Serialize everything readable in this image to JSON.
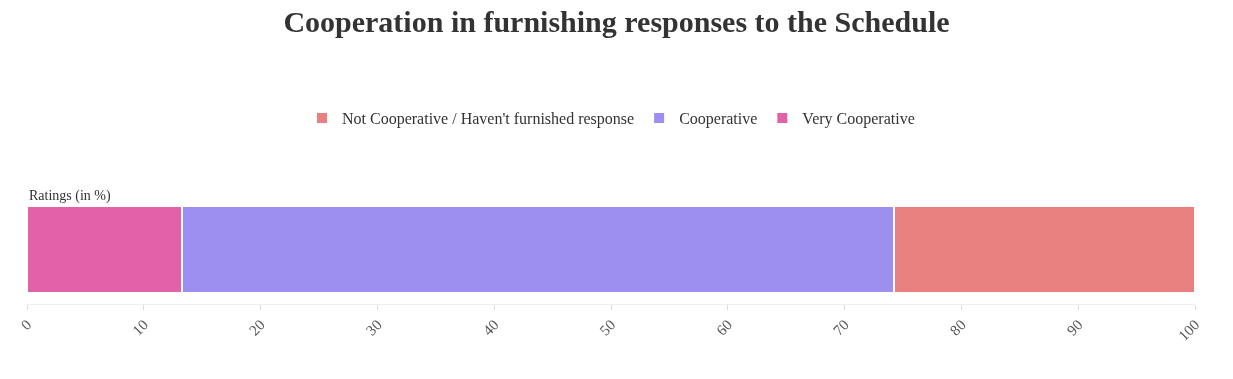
{
  "chart_data": {
    "type": "bar",
    "title": "Cooperation in furnishing responses to the Schedule",
    "orientation": "horizontal",
    "stacked": true,
    "categories": [
      "Ratings (in %)"
    ],
    "series": [
      {
        "name": "Very Cooperative",
        "color": "#e262a8",
        "values": [
          13.3
        ]
      },
      {
        "name": "Cooperative",
        "color": "#9d8ff0",
        "values": [
          60.9
        ]
      },
      {
        "name": "Not Cooperative / Haven't furnished response",
        "color": "#e88080",
        "values": [
          25.8
        ]
      }
    ],
    "xlim": [
      0,
      100
    ],
    "xticks": [
      0,
      10,
      20,
      30,
      40,
      50,
      60,
      70,
      80,
      90,
      100
    ],
    "legend": "top",
    "grid": false
  }
}
